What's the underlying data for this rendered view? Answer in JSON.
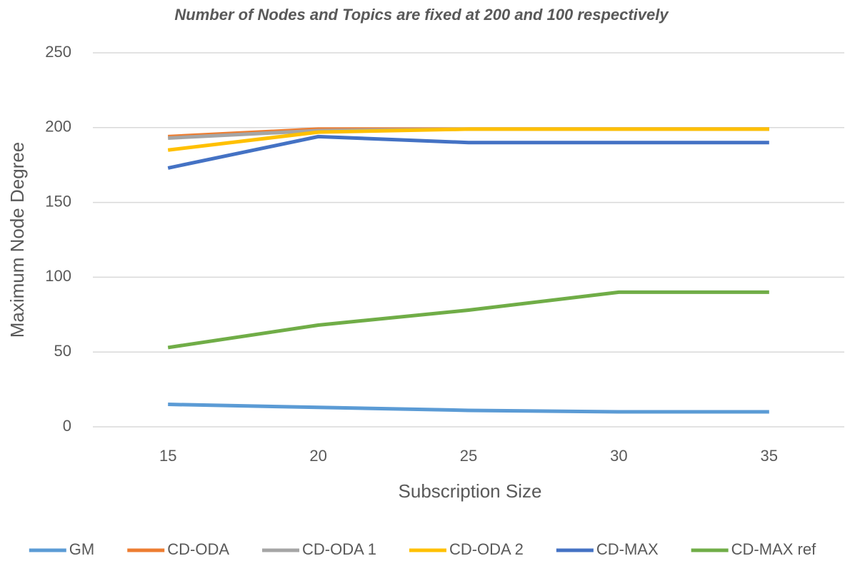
{
  "chart_data": {
    "type": "line",
    "title": "Number of Nodes and Topics are fixed at 200 and 100 respectively",
    "x_label": "Subscription Size",
    "y_label": "Maximum Node Degree",
    "categories": [
      15,
      20,
      25,
      30,
      35
    ],
    "series": [
      {
        "name": "GM",
        "color": "#5b9bd5",
        "values": [
          15,
          13,
          11,
          10,
          10
        ]
      },
      {
        "name": "CD-ODA",
        "color": "#ed7d31",
        "values": [
          194,
          199,
          199,
          199,
          199
        ]
      },
      {
        "name": "CD-ODA 1",
        "color": "#a5a5a5",
        "values": [
          193,
          198,
          199,
          199,
          199
        ]
      },
      {
        "name": "CD-ODA 2",
        "color": "#ffc000",
        "values": [
          185,
          197,
          199,
          199,
          199
        ]
      },
      {
        "name": "CD-MAX",
        "color": "#4472c4",
        "values": [
          173,
          194,
          190,
          190,
          190
        ]
      },
      {
        "name": "CD-MAX ref",
        "color": "#70ad47",
        "values": [
          53,
          68,
          78,
          90,
          90
        ]
      }
    ],
    "ylim": [
      0,
      250
    ],
    "yticks": [
      0,
      50,
      100,
      150,
      200,
      250
    ],
    "grid": true,
    "legend": "bottom"
  }
}
